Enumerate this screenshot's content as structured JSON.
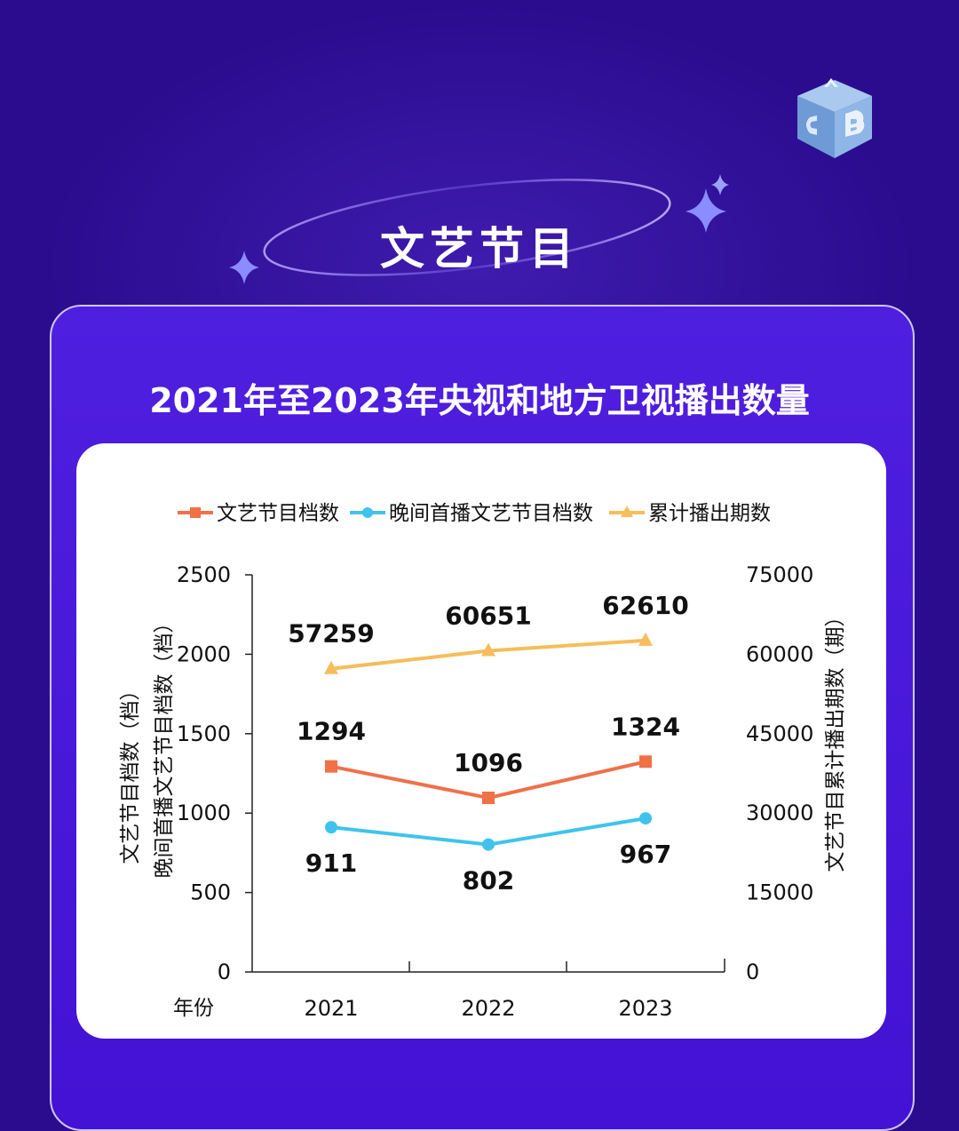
{
  "section_title": "文艺节目",
  "chart_title": "2021年至2023年央视和地方卫视播出数量",
  "colors": {
    "series_programs": "#f07048",
    "series_evening": "#3fc3ee",
    "series_episodes": "#f6bd5a",
    "accent": "#4312d4"
  },
  "icons": {
    "logo": "abcd-cube-logo-icon",
    "sparkle": "four-point-star-icon"
  },
  "chart_data": {
    "type": "line",
    "xlabel": "年份",
    "ylabel_left": [
      "文艺节目档数（档）",
      "晚间首播文艺节目档数（档）"
    ],
    "ylabel_right": "文艺节目累计播出期数（期）",
    "x": [
      "2021",
      "2022",
      "2023"
    ],
    "ylim_left": [
      0,
      2500
    ],
    "yticks_left": [
      "0",
      "500",
      "1000",
      "1500",
      "2000",
      "2500"
    ],
    "ylim_right": [
      0,
      75000
    ],
    "yticks_right": [
      "0",
      "15000",
      "30000",
      "45000",
      "60000",
      "75000"
    ],
    "legend_position": "top",
    "grid": false,
    "series": [
      {
        "name": "文艺节目档数",
        "axis": "left",
        "marker": "square",
        "values": [
          1294,
          1096,
          1324
        ],
        "labels": [
          "1294",
          "1096",
          "1324"
        ]
      },
      {
        "name": "晚间首播文艺节目档数",
        "axis": "left",
        "marker": "circle",
        "values": [
          911,
          802,
          967
        ],
        "labels": [
          "911",
          "802",
          "967"
        ]
      },
      {
        "name": "累计播出期数",
        "axis": "right",
        "marker": "triangle",
        "values": [
          57259,
          60651,
          62610
        ],
        "labels": [
          "57259",
          "60651",
          "62610"
        ]
      }
    ]
  }
}
